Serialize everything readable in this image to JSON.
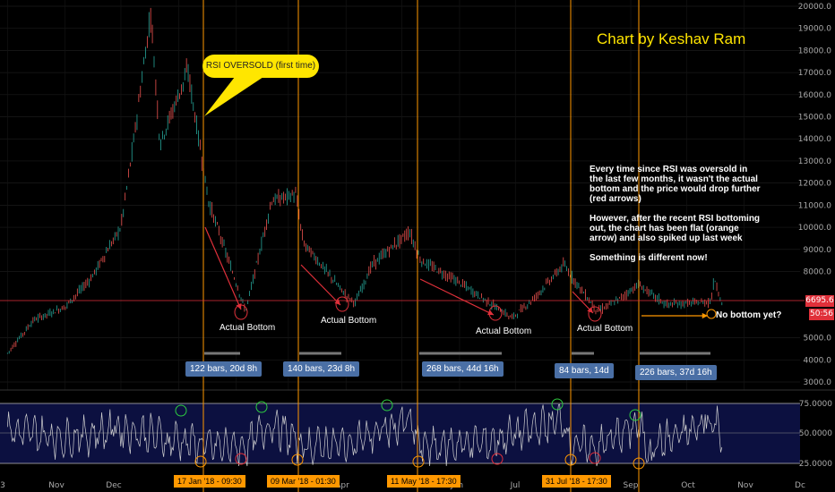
{
  "credit": "Chart by Keshav Ram",
  "callout": "RSI OVERSOLD (first time)",
  "note": "Every time since RSI was oversold in the last few months, it wasn't the actual bottom and the price would drop further (red arrows)\n\nHowever, after the recent RSI bottoming out, the chart has been flat (orange arrow) and also spiked up last week\n\nSomething is different now!",
  "actual_bottom_labels": [
    "Actual Bottom",
    "Actual Bottom",
    "Actual Bottom",
    "Actual Bottom"
  ],
  "no_bottom_label": "No bottom yet?",
  "bar_counts": [
    "122 bars, 20d 8h",
    "140 bars, 23d 8h",
    "268 bars, 44d 16h",
    "84 bars, 14d",
    "226 bars, 37d 16h"
  ],
  "date_markers": [
    "17 Jan '18 - 09:30",
    "09 Mar '18 - 01:30",
    "11 May '18 - 17:30",
    "31 Jul '18 - 17:30"
  ],
  "last_price": "6695.6",
  "countdown": "50:56",
  "colors": {
    "accent": "#ffe500",
    "vline": "#ff9800",
    "arrow": "#e0303a",
    "box": "#4a6fa5",
    "rsi_line": "#d0d0d0"
  },
  "chart_data": [
    {
      "type": "line",
      "title": "",
      "xlabel": "",
      "ylabel": "",
      "x_tick_labels": [
        "3",
        "Nov",
        "Dec",
        "20",
        "Apr",
        "Jun",
        "Jul",
        "Sep",
        "Oct",
        "Nov",
        "Dc"
      ],
      "y_tick_labels": [
        "3000.0",
        "4000.0",
        "5000.0",
        "8000.0",
        "9000.0",
        "10000.0",
        "11000.0",
        "12000.0",
        "13000.0",
        "14000.0",
        "15000.0",
        "16000.0",
        "17000.0",
        "18000.0",
        "19000.0",
        "20000.0"
      ],
      "ylim": [
        3000,
        20000
      ],
      "series": [
        {
          "x": [
            "2017-10-01",
            "2017-10-15",
            "2017-11-01",
            "2017-11-15",
            "2017-12-01",
            "2017-12-08",
            "2017-12-17",
            "2017-12-22",
            "2018-01-06",
            "2018-01-17",
            "2018-02-06",
            "2018-02-20",
            "2018-03-05",
            "2018-03-09",
            "2018-04-01",
            "2018-04-06",
            "2018-04-15",
            "2018-05-05",
            "2018-05-11",
            "2018-06-01",
            "2018-06-29",
            "2018-07-10",
            "2018-07-27",
            "2018-07-31",
            "2018-08-14",
            "2018-08-25",
            "2018-09-05",
            "2018-09-20",
            "2018-10-10",
            "2018-10-14",
            "2018-10-16",
            "2018-10-20"
          ],
          "values": [
            4300,
            5800,
            6400,
            7700,
            10000,
            14000,
            19700,
            13800,
            17100,
            11200,
            6200,
            11200,
            11500,
            9300,
            6900,
            6600,
            8300,
            9800,
            8500,
            7500,
            5900,
            6700,
            8300,
            7800,
            6200,
            6700,
            7400,
            6500,
            6600,
            6650,
            7700,
            6550
          ]
        }
      ]
    },
    {
      "type": "line",
      "title": "",
      "y_tick_labels": [
        "25.0000",
        "50.0000",
        "75.0000"
      ],
      "ylim": [
        15,
        90
      ],
      "series": [
        {
          "x": [
            "2017-10-01",
            "2017-11-01",
            "2017-12-01",
            "2018-01-17",
            "2018-02-06",
            "2018-02-20",
            "2018-03-09",
            "2018-04-01",
            "2018-05-05",
            "2018-05-11",
            "2018-06-15",
            "2018-07-27",
            "2018-07-31",
            "2018-08-14",
            "2018-09-05",
            "2018-09-10",
            "2018-10-16",
            "2018-10-20"
          ],
          "values": [
            58,
            42,
            62,
            22,
            20,
            76,
            22,
            25,
            82,
            21,
            30,
            85,
            22,
            20,
            74,
            18,
            80,
            52
          ]
        }
      ]
    }
  ]
}
